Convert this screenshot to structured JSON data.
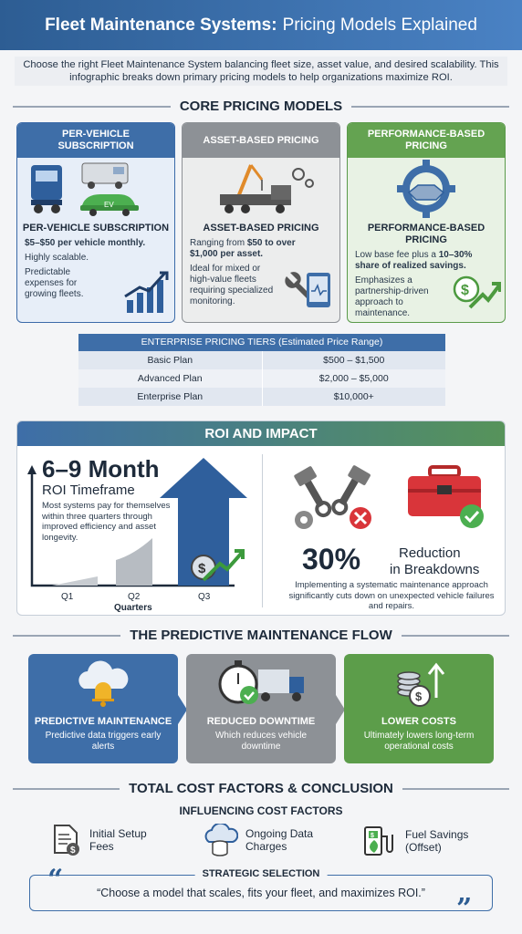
{
  "header": {
    "title_bold": "Fleet Maintenance Systems:",
    "title_rest": "Pricing Models Explained"
  },
  "intro": "Choose the right Fleet Maintenance System balancing fleet size, asset value, and desired scalability. This infographic breaks down primary pricing models to help organizations maximize ROI.",
  "core": {
    "heading": "CORE PRICING MODELS",
    "cards": [
      {
        "cap": "PER-VEHICLE SUBSCRIPTION",
        "title": "PER-VEHICLE SUBSCRIPTION",
        "price": "$5–$50 per vehicle monthly.",
        "l1": "Highly scalable.",
        "l2": "Predictable expenses for growing fleets.",
        "badge": "EV"
      },
      {
        "cap": "ASSET-BASED PRICING",
        "title": "ASSET-BASED PRICING",
        "price_pre": "Ranging from ",
        "price": "$50 to over $1,000 per asset.",
        "l1": "Ideal for mixed or high-value fleets requiring specialized monitoring."
      },
      {
        "cap": "PERFORMANCE-BASED PRICING",
        "title": "PERFORMANCE-BASED PRICING",
        "price_pre": "Low base fee plus a ",
        "price": "10–30% share of realized savings.",
        "l1": "Emphasizes a partnership-driven approach to maintenance."
      }
    ]
  },
  "tiers": {
    "header": "ENTERPRISE PRICING TIERS (Estimated Price Range)",
    "rows": [
      {
        "plan": "Basic Plan",
        "range": "$500 – $1,500"
      },
      {
        "plan": "Advanced Plan",
        "range": "$2,000 – $5,000"
      },
      {
        "plan": "Enterprise Plan",
        "range": "$10,000+"
      }
    ]
  },
  "roi": {
    "heading": "ROI AND IMPACT",
    "big": "6–9 Month",
    "sub": "ROI Timeframe",
    "desc": "Most systems pay for themselves within three quarters through improved efficiency and asset longevity.",
    "q1": "Q1",
    "q2": "Q2",
    "q3": "Q3",
    "xlabel": "Quarters",
    "pct": "30%",
    "reduction": "Reduction",
    "breakdowns": "in Breakdowns",
    "impact": "Implementing a systematic maintenance approach significantly cuts down on unexpected vehicle failures and repairs."
  },
  "flow": {
    "heading": "THE PREDICTIVE MAINTENANCE FLOW",
    "steps": [
      {
        "title": "PREDICTIVE MAINTENANCE",
        "sub": "Predictive data triggers early alerts"
      },
      {
        "title": "REDUCED DOWNTIME",
        "sub": "Which reduces vehicle downtime"
      },
      {
        "title": "LOWER COSTS",
        "sub": "Ultimately lowers long-term operational costs"
      }
    ]
  },
  "total": {
    "heading": "TOTAL COST FACTORS & CONCLUSION",
    "sub": "INFLUENCING COST FACTORS",
    "factors": [
      {
        "a": "Initial Setup",
        "b": "Fees"
      },
      {
        "a": "Ongoing Data",
        "b": "Charges"
      },
      {
        "a": "Fuel Savings",
        "b": "(Offset)"
      }
    ],
    "label": "STRATEGIC SELECTION",
    "quote": "“Choose a model that scales, fits your fleet, and maximizes ROI.”",
    "open_mark": "“",
    "close_mark": "”"
  },
  "colors": {
    "blue": "#3e6ea8",
    "gray": "#8d9196",
    "green": "#64a351",
    "navy": "#2d5d93"
  }
}
